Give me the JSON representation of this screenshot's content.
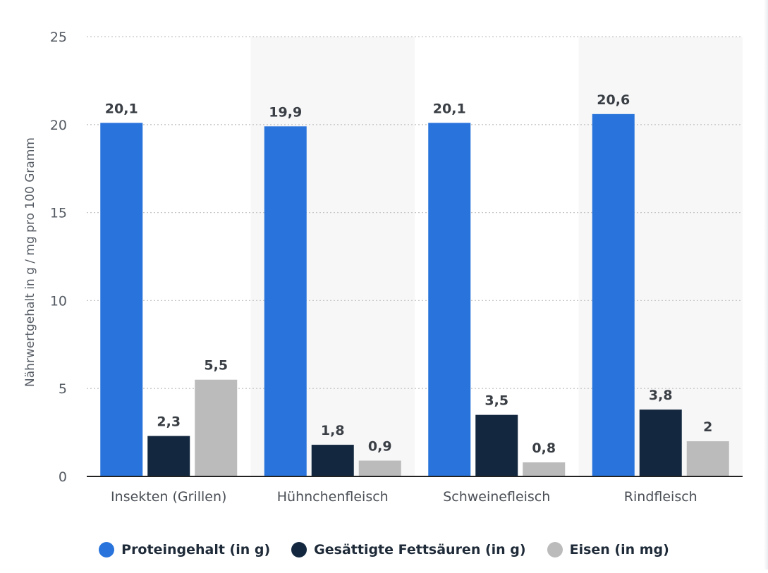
{
  "chart_data": {
    "type": "bar",
    "title": "",
    "xlabel": "",
    "ylabel": "Nährwertgehalt in g / mg pro 100 Gramm",
    "ylim": [
      0,
      25
    ],
    "yticks": [
      0,
      5,
      10,
      15,
      20,
      25
    ],
    "grid": true,
    "legend_position": "bottom",
    "categories": [
      "Insekten (Grillen)",
      "Hühnchenfleisch",
      "Schweinefleisch",
      "Rindfleisch"
    ],
    "series": [
      {
        "name": "Proteingehalt (in g)",
        "color": "#2874dc",
        "values": [
          20.1,
          19.9,
          20.1,
          20.6
        ],
        "labels": [
          "20,1",
          "19,9",
          "20,1",
          "20,6"
        ]
      },
      {
        "name": "Gesättigte Fettsäuren (in g)",
        "color": "#13283f",
        "values": [
          2.3,
          1.8,
          3.5,
          3.8
        ],
        "labels": [
          "2,3",
          "1,8",
          "3,5",
          "3,8"
        ]
      },
      {
        "name": "Eisen (in mg)",
        "color": "#bbbbbb",
        "values": [
          5.5,
          0.9,
          0.8,
          2
        ],
        "labels": [
          "5,5",
          "0,9",
          "0,8",
          "2"
        ]
      }
    ]
  }
}
